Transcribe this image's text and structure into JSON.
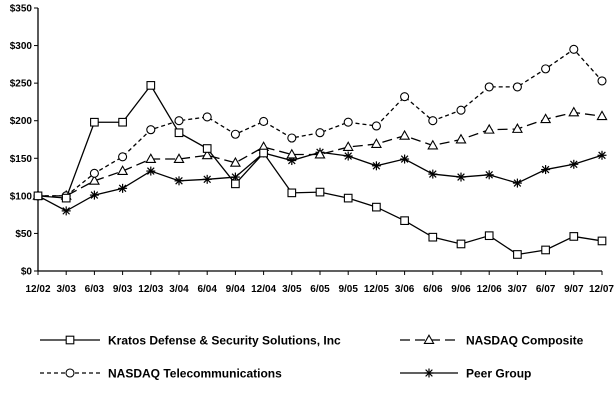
{
  "chart_data": {
    "type": "line",
    "title": "",
    "xlabel": "",
    "ylabel": "",
    "ylim": [
      0,
      350
    ],
    "yticks": [
      0,
      50,
      100,
      150,
      200,
      250,
      300,
      350
    ],
    "ytick_labels": [
      "$0",
      "$50",
      "$100",
      "$150",
      "$200",
      "$250",
      "$300",
      "$350"
    ],
    "categories": [
      "12/02",
      "3/03",
      "6/03",
      "9/03",
      "12/03",
      "3/04",
      "6/04",
      "9/04",
      "12/04",
      "3/05",
      "6/05",
      "9/05",
      "12/05",
      "3/06",
      "6/06",
      "9/06",
      "12/06",
      "3/07",
      "6/07",
      "9/07",
      "12/07"
    ],
    "grid": false,
    "legend_position": "bottom",
    "series": [
      {
        "name": "Kratos Defense & Security Solutions, Inc",
        "style": "solid",
        "marker": "square",
        "values": [
          100,
          97,
          198,
          198,
          247,
          184,
          163,
          116,
          157,
          104,
          105,
          97,
          85,
          67,
          45,
          36,
          47,
          22,
          28,
          46,
          40
        ]
      },
      {
        "name": "NASDAQ Composite",
        "style": "long-dash",
        "marker": "triangle",
        "values": [
          100,
          100,
          120,
          133,
          149,
          149,
          154,
          144,
          165,
          155,
          155,
          165,
          169,
          180,
          167,
          175,
          188,
          189,
          202,
          211,
          206
        ]
      },
      {
        "name": "NASDAQ Telecommunications",
        "style": "short-dash",
        "marker": "circle",
        "values": [
          100,
          100,
          130,
          152,
          188,
          200,
          205,
          182,
          199,
          177,
          184,
          198,
          193,
          232,
          200,
          214,
          245,
          245,
          269,
          295,
          253
        ]
      },
      {
        "name": "Peer Group",
        "style": "solid",
        "marker": "asterisk",
        "values": [
          100,
          80,
          101,
          110,
          133,
          120,
          122,
          125,
          157,
          147,
          158,
          153,
          140,
          149,
          129,
          125,
          128,
          117,
          135,
          142,
          154
        ]
      }
    ]
  }
}
